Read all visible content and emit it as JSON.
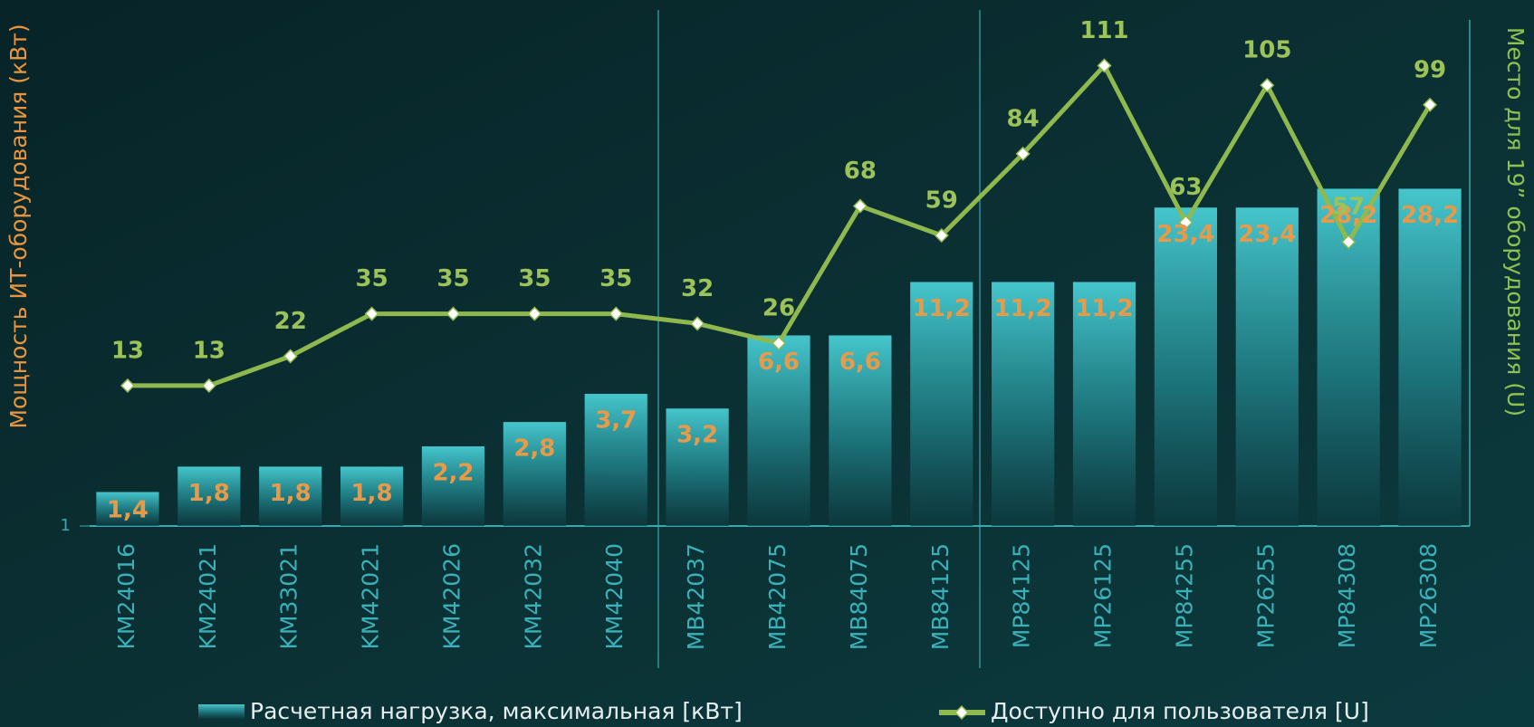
{
  "chart_data": {
    "type": "combo",
    "y_label": "Мощность ИТ-оборудования (кВт)",
    "y2_label": "Место для 19” оборудования (U)",
    "categories": [
      "KM24016",
      "KM24021",
      "KM33021",
      "KM42021",
      "KM42026",
      "KM42032",
      "KM42040",
      "MB42037",
      "MB42075",
      "MB84075",
      "MB84125",
      "MP84125",
      "MP26125",
      "MP84255",
      "MP26255",
      "MP84308",
      "MP26308"
    ],
    "series": [
      {
        "name": "Расчетная нагрузка, максимальная [кВт]",
        "type": "bar",
        "color": "#3cbcc4",
        "values": [
          1.4,
          1.8,
          1.8,
          1.8,
          2.2,
          2.8,
          3.7,
          3.2,
          6.6,
          6.6,
          11.2,
          11.2,
          11.2,
          23.4,
          23.4,
          28.2,
          28.2
        ],
        "value_labels": [
          "1,4",
          "1,8",
          "1,8",
          "1,8",
          "2,2",
          "2,8",
          "3,7",
          "3,2",
          "6,6",
          "6,6",
          "11,2",
          "11,2",
          "11,2",
          "23,4",
          "23,4",
          "28,2",
          "28,2"
        ],
        "label_color": "#e89a48"
      },
      {
        "name": "Доступно для пользователя [U]",
        "type": "line",
        "axis": "y2",
        "color": "#8fb94f",
        "values": [
          13,
          13,
          22,
          35,
          35,
          35,
          35,
          32,
          26,
          68,
          59,
          84,
          111,
          63,
          105,
          57,
          99
        ],
        "label_color": "#9cc25a"
      }
    ],
    "ylog": true,
    "ylim": [
      1,
      150
    ],
    "yticks": [
      1
    ],
    "y2lim": [
      -30,
      125
    ]
  }
}
